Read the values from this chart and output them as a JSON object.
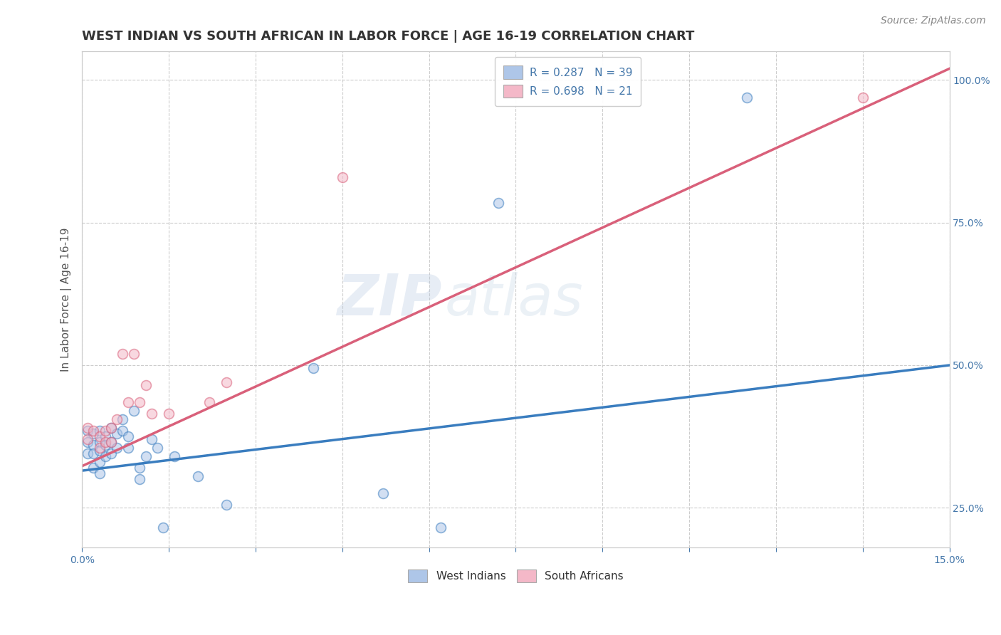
{
  "title": "WEST INDIAN VS SOUTH AFRICAN IN LABOR FORCE | AGE 16-19 CORRELATION CHART",
  "source": "Source: ZipAtlas.com",
  "ylabel_left": "In Labor Force | Age 16-19",
  "watermark_zip": "ZIP",
  "watermark_atlas": "atlas",
  "legend_entries": [
    {
      "label": "R = 0.287   N = 39",
      "color": "#aec6e8"
    },
    {
      "label": "R = 0.698   N = 21",
      "color": "#f4b8c8"
    }
  ],
  "legend2_entries": [
    {
      "label": "West Indians",
      "color": "#aec6e8"
    },
    {
      "label": "South Africans",
      "color": "#f4b8c8"
    }
  ],
  "xmin": 0.0,
  "xmax": 0.15,
  "ymin": 0.18,
  "ymax": 1.05,
  "yticks_right": [
    0.25,
    0.5,
    0.75,
    1.0
  ],
  "ytick_labels_right": [
    "25.0%",
    "50.0%",
    "75.0%",
    "100.0%"
  ],
  "xticks": [
    0.0,
    0.015,
    0.03,
    0.045,
    0.06,
    0.075,
    0.09,
    0.105,
    0.12,
    0.135,
    0.15
  ],
  "xtick_labels": [
    "0.0%",
    "",
    "",
    "",
    "",
    "",
    "",
    "",
    "",
    "",
    "15.0%"
  ],
  "blue_color": "#aec6e8",
  "pink_color": "#f4b8c8",
  "blue_line_color": "#3a7dbf",
  "pink_line_color": "#d9607a",
  "background_color": "#ffffff",
  "grid_color": "#cccccc",
  "title_color": "#333333",
  "west_indian_x": [
    0.001,
    0.001,
    0.001,
    0.002,
    0.002,
    0.002,
    0.002,
    0.003,
    0.003,
    0.003,
    0.003,
    0.003,
    0.004,
    0.004,
    0.004,
    0.005,
    0.005,
    0.005,
    0.006,
    0.006,
    0.007,
    0.007,
    0.008,
    0.008,
    0.009,
    0.01,
    0.01,
    0.011,
    0.012,
    0.013,
    0.014,
    0.016,
    0.02,
    0.025,
    0.04,
    0.052,
    0.062,
    0.072,
    0.115
  ],
  "west_indian_y": [
    0.385,
    0.365,
    0.345,
    0.38,
    0.36,
    0.345,
    0.32,
    0.385,
    0.365,
    0.35,
    0.33,
    0.31,
    0.375,
    0.36,
    0.34,
    0.39,
    0.365,
    0.345,
    0.38,
    0.355,
    0.405,
    0.385,
    0.375,
    0.355,
    0.42,
    0.32,
    0.3,
    0.34,
    0.37,
    0.355,
    0.215,
    0.34,
    0.305,
    0.255,
    0.495,
    0.275,
    0.215,
    0.785,
    0.97
  ],
  "south_african_x": [
    0.001,
    0.001,
    0.002,
    0.003,
    0.003,
    0.004,
    0.004,
    0.005,
    0.005,
    0.006,
    0.007,
    0.008,
    0.009,
    0.01,
    0.011,
    0.012,
    0.015,
    0.022,
    0.025,
    0.045,
    0.135
  ],
  "south_african_y": [
    0.39,
    0.37,
    0.385,
    0.375,
    0.355,
    0.385,
    0.365,
    0.39,
    0.365,
    0.405,
    0.52,
    0.435,
    0.52,
    0.435,
    0.465,
    0.415,
    0.415,
    0.435,
    0.47,
    0.83,
    0.97
  ],
  "blue_line_y_intercept": 0.315,
  "blue_line_slope": 1.233,
  "pink_line_y_intercept": 0.323,
  "pink_line_slope": 4.647,
  "fontsize_title": 13,
  "fontsize_axis": 11,
  "fontsize_ticks": 10,
  "fontsize_legend": 11,
  "fontsize_source": 10,
  "marker_size": 100,
  "marker_alpha": 0.55,
  "line_width": 2.5
}
